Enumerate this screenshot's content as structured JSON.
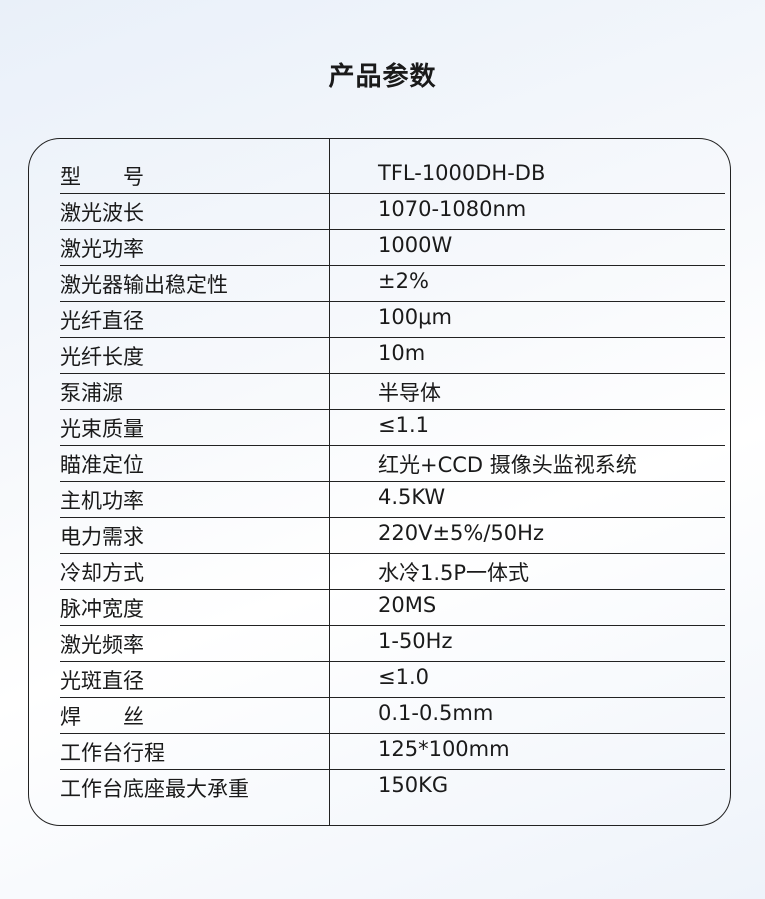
{
  "title": "产品参数",
  "rows": [
    {
      "k": "型　　号",
      "v": "TFL-1000DH-DB"
    },
    {
      "k": "激光波长",
      "v": "1070-1080nm"
    },
    {
      "k": "激光功率",
      "v": "1000W"
    },
    {
      "k": "激光器输出稳定性",
      "v": "±2%"
    },
    {
      "k": "光纤直径",
      "v": "100μm"
    },
    {
      "k": "光纤长度",
      "v": "10m"
    },
    {
      "k": "泵浦源",
      "v": "半导体"
    },
    {
      "k": "光束质量",
      "v": "≤1.1"
    },
    {
      "k": "瞄准定位",
      "v": "红光+CCD 摄像头监视系统"
    },
    {
      "k": "主机功率",
      "v": "4.5KW"
    },
    {
      "k": "电力需求",
      "v": "220V±5%/50Hz"
    },
    {
      "k": "冷却方式",
      "v": "水冷1.5P一体式"
    },
    {
      "k": "脉冲宽度",
      "v": "20MS"
    },
    {
      "k": "激光频率",
      "v": "1-50Hz"
    },
    {
      "k": "光斑直径",
      "v": "≤1.0"
    },
    {
      "k": "焊　　丝",
      "v": "0.1-0.5mm"
    },
    {
      "k": "工作台行程",
      "v": "125*100mm"
    },
    {
      "k": "工作台底座最大承重",
      "v": "150KG"
    }
  ]
}
